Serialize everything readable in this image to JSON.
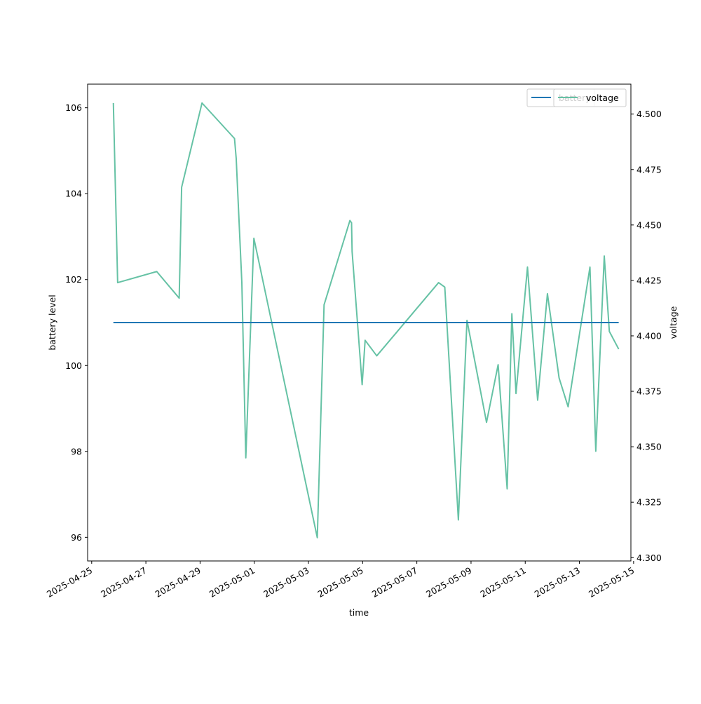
{
  "chart_data": {
    "type": "line",
    "xlabel": "time",
    "ylabel_left": "battery level",
    "ylabel_right": "voltage",
    "x_ticks": [
      "2025-04-25",
      "2025-04-27",
      "2025-04-29",
      "2025-05-01",
      "2025-05-03",
      "2025-05-05",
      "2025-05-07",
      "2025-05-09",
      "2025-05-11",
      "2025-05-13",
      "2025-05-15"
    ],
    "ylim_left": [
      95.45,
      106.55
    ],
    "yticks_left": [
      "96",
      "98",
      "100",
      "102",
      "104",
      "106"
    ],
    "ylim_right": [
      4.2985,
      4.5135
    ],
    "yticks_right": [
      "4.300",
      "4.325",
      "4.350",
      "4.375",
      "4.400",
      "4.425",
      "4.450",
      "4.475",
      "4.500"
    ],
    "xlim": [
      "2025-04-24T20:24",
      "2025-05-14T21:36"
    ],
    "colors": {
      "battery": "#1f77b4",
      "voltage": "#66c2a5"
    },
    "series": [
      {
        "name": "battery",
        "axis": "left",
        "points": [
          [
            "2025-04-25T19:12",
            101
          ],
          [
            "2025-05-14T10:48",
            101
          ]
        ]
      },
      {
        "name": "voltage",
        "axis": "right",
        "points": [
          [
            "2025-04-25T19:12",
            4.505
          ],
          [
            "2025-04-25T23:00",
            4.424
          ],
          [
            "2025-04-27T09:36",
            4.429
          ],
          [
            "2025-04-28T05:30",
            4.417
          ],
          [
            "2025-04-28T07:40",
            4.467
          ],
          [
            "2025-04-29T01:43",
            4.505
          ],
          [
            "2025-04-30T06:30",
            4.489
          ],
          [
            "2025-04-30T08:00",
            4.48
          ],
          [
            "2025-04-30T13:00",
            4.424
          ],
          [
            "2025-04-30T16:30",
            4.345
          ],
          [
            "2025-04-30T23:40",
            4.444
          ],
          [
            "2025-05-03T07:50",
            4.309
          ],
          [
            "2025-05-03T13:50",
            4.414
          ],
          [
            "2025-05-04T12:43",
            4.452
          ],
          [
            "2025-05-04T14:10",
            4.451
          ],
          [
            "2025-05-04T14:40",
            4.438
          ],
          [
            "2025-05-04T23:33",
            4.378
          ],
          [
            "2025-05-05T02:12",
            4.398
          ],
          [
            "2025-05-05T12:30",
            4.391
          ],
          [
            "2025-05-07T19:15",
            4.424
          ],
          [
            "2025-05-08T00:45",
            4.422
          ],
          [
            "2025-05-08T12:47",
            4.317
          ],
          [
            "2025-05-08T20:25",
            4.407
          ],
          [
            "2025-05-09T13:43",
            4.361
          ],
          [
            "2025-05-10T00:00",
            4.387
          ],
          [
            "2025-05-10T08:00",
            4.331
          ],
          [
            "2025-05-10T12:10",
            4.41
          ],
          [
            "2025-05-10T15:50",
            4.374
          ],
          [
            "2025-05-11T02:00",
            4.431
          ],
          [
            "2025-05-11T11:00",
            4.371
          ],
          [
            "2025-05-11T19:40",
            4.419
          ],
          [
            "2025-05-12T06:00",
            4.381
          ],
          [
            "2025-05-12T14:00",
            4.368
          ],
          [
            "2025-05-13T09:20",
            4.431
          ],
          [
            "2025-05-13T14:30",
            4.348
          ],
          [
            "2025-05-13T22:00",
            4.436
          ],
          [
            "2025-05-14T02:30",
            4.402
          ],
          [
            "2025-05-14T10:48",
            4.394
          ]
        ]
      }
    ]
  }
}
